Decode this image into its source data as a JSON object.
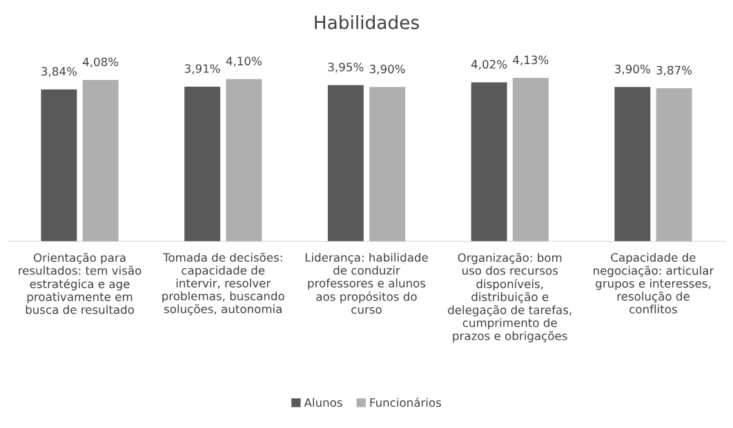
{
  "chart_data": {
    "type": "bar",
    "title": "Habilidades",
    "categories": [
      "Orientação para\nresultados: tem visão\nestratégica e age\nproativamente em\nbusca de resultado",
      "Tomada de decisões:\ncapacidade de\nintervir, resolver\nproblemas, buscando\nsoluções, autonomia",
      "Liderança: habilidade\nde conduzir\nprofessores e alunos\naos propósitos do\ncurso",
      "Organização: bom\nuso dos recursos\ndisponíveis,\ndistribuição e\ndelegação de tarefas,\ncumprimento de\nprazos e obrigações",
      "Capacidade de\nnegociação: articular\ngrupos e interesses,\nresolução de\nconflitos"
    ],
    "series": [
      {
        "name": "Alunos",
        "color": "#595959",
        "values": [
          3.84,
          3.91,
          3.95,
          4.02,
          3.9
        ],
        "value_labels": [
          "3,84%",
          "3,91%",
          "3,95%",
          "4,02%",
          "3,90%"
        ]
      },
      {
        "name": "Funcionários",
        "color": "#afafaf",
        "values": [
          4.08,
          4.1,
          3.9,
          4.13,
          3.87
        ],
        "value_labels": [
          "4,08%",
          "4,10%",
          "3,90%",
          "4,13%",
          "3,87%"
        ]
      }
    ],
    "tick_labels": "x",
    "grid": false,
    "legend": "bottom"
  }
}
